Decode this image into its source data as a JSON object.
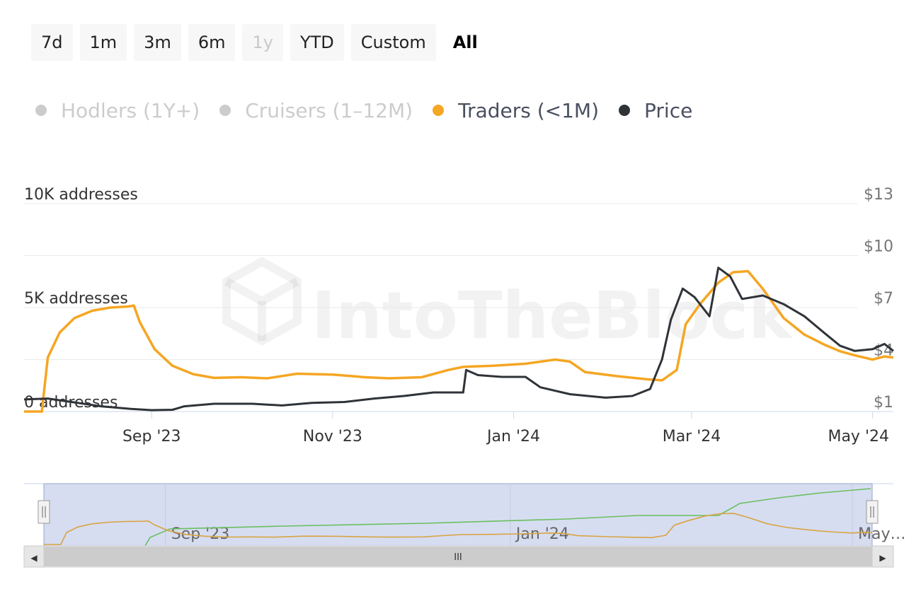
{
  "range_selector": {
    "buttons": [
      {
        "label": "7d",
        "state": "normal"
      },
      {
        "label": "1m",
        "state": "normal"
      },
      {
        "label": "3m",
        "state": "normal"
      },
      {
        "label": "6m",
        "state": "normal"
      },
      {
        "label": "1y",
        "state": "disabled"
      },
      {
        "label": "YTD",
        "state": "normal"
      },
      {
        "label": "Custom",
        "state": "normal"
      },
      {
        "label": "All",
        "state": "active"
      }
    ]
  },
  "legend": [
    {
      "label": "Hodlers (1Y+)",
      "color": "#cccccc",
      "visible": false
    },
    {
      "label": "Cruisers (1–12M)",
      "color": "#cccccc",
      "visible": false
    },
    {
      "label": "Traders (<1M)",
      "color": "#f5a623",
      "visible": true
    },
    {
      "label": "Price",
      "color": "#2f3338",
      "visible": true
    }
  ],
  "watermark": "IntoTheBlock",
  "chart_data": {
    "type": "line",
    "x_type": "date",
    "x_range": [
      "2023-07-20",
      "2024-05-08"
    ],
    "x_ticks": [
      {
        "date": "2023-09-01",
        "label": "Sep '23"
      },
      {
        "date": "2023-11-01",
        "label": "Nov '23"
      },
      {
        "date": "2024-01-01",
        "label": "Jan '24"
      },
      {
        "date": "2024-03-01",
        "label": "Mar '24"
      },
      {
        "date": "2024-05-01",
        "label": "May '24"
      }
    ],
    "y_left": {
      "ticks": [
        {
          "value": 0,
          "label": "0 addresses"
        },
        {
          "value": 5000,
          "label": "5K addresses"
        },
        {
          "value": 10000,
          "label": "10K addresses"
        }
      ],
      "range": [
        0,
        10000
      ]
    },
    "y_right": {
      "ticks": [
        {
          "value": 1,
          "label": "$1"
        },
        {
          "value": 4,
          "label": "$4"
        },
        {
          "value": 7,
          "label": "$7"
        },
        {
          "value": 10,
          "label": "$10"
        },
        {
          "value": 13,
          "label": "$13"
        }
      ],
      "range": [
        1,
        13
      ]
    },
    "series": [
      {
        "name": "Traders (<1M)",
        "axis": "left",
        "color": "#f5a623",
        "points": [
          [
            "2023-07-20",
            0
          ],
          [
            "2023-07-26",
            0
          ],
          [
            "2023-07-28",
            2600
          ],
          [
            "2023-08-01",
            3800
          ],
          [
            "2023-08-06",
            4500
          ],
          [
            "2023-08-12",
            4850
          ],
          [
            "2023-08-18",
            5000
          ],
          [
            "2023-08-24",
            5050
          ],
          [
            "2023-08-26",
            5100
          ],
          [
            "2023-08-28",
            4300
          ],
          [
            "2023-09-02",
            3000
          ],
          [
            "2023-09-08",
            2200
          ],
          [
            "2023-09-15",
            1800
          ],
          [
            "2023-09-22",
            1620
          ],
          [
            "2023-10-01",
            1650
          ],
          [
            "2023-10-10",
            1600
          ],
          [
            "2023-10-20",
            1820
          ],
          [
            "2023-11-01",
            1780
          ],
          [
            "2023-11-12",
            1650
          ],
          [
            "2023-11-20",
            1600
          ],
          [
            "2023-12-01",
            1650
          ],
          [
            "2023-12-10",
            2000
          ],
          [
            "2023-12-15",
            2150
          ],
          [
            "2023-12-25",
            2200
          ],
          [
            "2024-01-05",
            2300
          ],
          [
            "2024-01-15",
            2500
          ],
          [
            "2024-01-20",
            2400
          ],
          [
            "2024-01-25",
            1900
          ],
          [
            "2024-02-05",
            1700
          ],
          [
            "2024-02-15",
            1550
          ],
          [
            "2024-02-20",
            1500
          ],
          [
            "2024-02-25",
            2000
          ],
          [
            "2024-02-28",
            4200
          ],
          [
            "2024-03-04",
            5200
          ],
          [
            "2024-03-10",
            6200
          ],
          [
            "2024-03-15",
            6700
          ],
          [
            "2024-03-20",
            6750
          ],
          [
            "2024-03-25",
            5900
          ],
          [
            "2024-04-01",
            4500
          ],
          [
            "2024-04-08",
            3700
          ],
          [
            "2024-04-15",
            3200
          ],
          [
            "2024-04-20",
            2900
          ],
          [
            "2024-04-25",
            2700
          ],
          [
            "2024-05-01",
            2500
          ],
          [
            "2024-05-05",
            2650
          ],
          [
            "2024-05-08",
            2600
          ]
        ]
      },
      {
        "name": "Price",
        "axis": "right",
        "color": "#2f3338",
        "points": [
          [
            "2023-07-20",
            1.7
          ],
          [
            "2023-07-28",
            1.75
          ],
          [
            "2023-08-05",
            1.55
          ],
          [
            "2023-08-15",
            1.3
          ],
          [
            "2023-08-25",
            1.15
          ],
          [
            "2023-09-01",
            1.08
          ],
          [
            "2023-09-08",
            1.1
          ],
          [
            "2023-09-12",
            1.3
          ],
          [
            "2023-09-22",
            1.45
          ],
          [
            "2023-10-05",
            1.45
          ],
          [
            "2023-10-15",
            1.35
          ],
          [
            "2023-10-25",
            1.5
          ],
          [
            "2023-11-05",
            1.55
          ],
          [
            "2023-11-15",
            1.75
          ],
          [
            "2023-11-25",
            1.9
          ],
          [
            "2023-12-05",
            2.1
          ],
          [
            "2023-12-15",
            2.1
          ],
          [
            "2023-12-16",
            3.4
          ],
          [
            "2023-12-20",
            3.1
          ],
          [
            "2023-12-28",
            3.0
          ],
          [
            "2024-01-05",
            3.0
          ],
          [
            "2024-01-10",
            2.4
          ],
          [
            "2024-01-20",
            2.0
          ],
          [
            "2024-02-01",
            1.8
          ],
          [
            "2024-02-10",
            1.9
          ],
          [
            "2024-02-16",
            2.3
          ],
          [
            "2024-02-20",
            4.0
          ],
          [
            "2024-02-23",
            6.3
          ],
          [
            "2024-02-27",
            8.1
          ],
          [
            "2024-03-02",
            7.6
          ],
          [
            "2024-03-07",
            6.5
          ],
          [
            "2024-03-10",
            9.3
          ],
          [
            "2024-03-14",
            8.8
          ],
          [
            "2024-03-18",
            7.5
          ],
          [
            "2024-03-25",
            7.7
          ],
          [
            "2024-04-01",
            7.2
          ],
          [
            "2024-04-08",
            6.5
          ],
          [
            "2024-04-15",
            5.5
          ],
          [
            "2024-04-20",
            4.8
          ],
          [
            "2024-04-25",
            4.5
          ],
          [
            "2024-05-01",
            4.6
          ],
          [
            "2024-05-05",
            4.9
          ],
          [
            "2024-05-08",
            4.5
          ]
        ]
      }
    ],
    "grid": true,
    "legend_position": "top-left"
  },
  "navigator": {
    "labels": [
      "Sep '23",
      "Jan '24",
      "May…"
    ],
    "scroll_left_arrow": "◀",
    "scroll_right_arrow": "▶",
    "scroll_grip": "III"
  }
}
